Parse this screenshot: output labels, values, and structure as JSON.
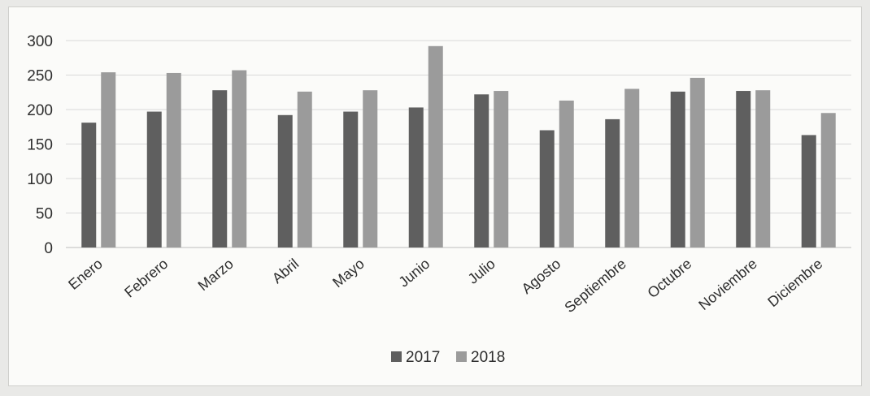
{
  "chart_data": {
    "type": "bar",
    "categories": [
      "Enero",
      "Febrero",
      "Marzo",
      "Abril",
      "Mayo",
      "Junio",
      "Julio",
      "Agosto",
      "Septiembre",
      "Octubre",
      "Noviembre",
      "Diciembre"
    ],
    "series": [
      {
        "name": "2017",
        "color": "#5f5f5f",
        "values": [
          181,
          197,
          228,
          192,
          197,
          203,
          222,
          170,
          186,
          226,
          227,
          163
        ]
      },
      {
        "name": "2018",
        "color": "#9b9b9b",
        "values": [
          254,
          253,
          257,
          226,
          228,
          292,
          227,
          213,
          230,
          246,
          228,
          195
        ]
      }
    ],
    "y_ticks": [
      "0",
      "50",
      "100",
      "150",
      "200",
      "250",
      "300"
    ],
    "ylim": [
      0,
      300
    ],
    "grid": true,
    "legend_position": "bottom",
    "title": "",
    "xlabel": "",
    "ylabel": ""
  }
}
